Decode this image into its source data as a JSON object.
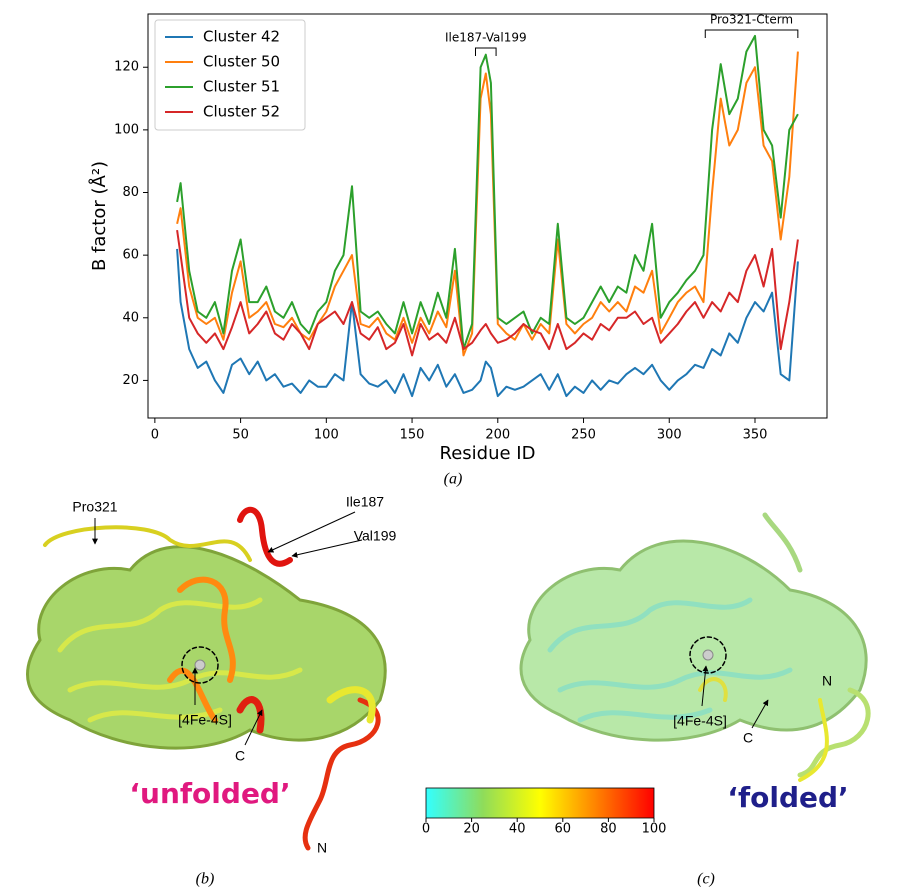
{
  "chart_data": {
    "type": "line",
    "xlabel": "Residue ID",
    "ylabel": "B factor (Å²)",
    "annotations": [
      {
        "text": "Ile187-Val199",
        "x": [
          187,
          199
        ]
      },
      {
        "text": "Pro321-Cterm",
        "x": [
          321,
          375
        ]
      }
    ],
    "x": [
      13,
      15,
      20,
      25,
      30,
      35,
      40,
      45,
      50,
      55,
      60,
      65,
      70,
      75,
      80,
      85,
      90,
      95,
      100,
      105,
      110,
      115,
      120,
      125,
      130,
      135,
      140,
      145,
      150,
      155,
      160,
      165,
      170,
      175,
      180,
      185,
      190,
      193,
      196,
      200,
      205,
      210,
      215,
      220,
      225,
      230,
      235,
      240,
      245,
      250,
      255,
      260,
      265,
      270,
      275,
      280,
      285,
      290,
      295,
      300,
      305,
      310,
      315,
      320,
      325,
      330,
      335,
      340,
      345,
      350,
      355,
      360,
      365,
      370,
      375
    ],
    "series": [
      {
        "name": "Cluster 42",
        "color": "#1f77b4",
        "values": [
          62,
          45,
          30,
          24,
          26,
          20,
          16,
          25,
          27,
          22,
          26,
          20,
          22,
          18,
          19,
          16,
          20,
          18,
          18,
          22,
          20,
          45,
          22,
          19,
          18,
          20,
          16,
          22,
          15,
          24,
          20,
          25,
          18,
          22,
          16,
          17,
          20,
          26,
          24,
          15,
          18,
          17,
          18,
          20,
          22,
          17,
          22,
          15,
          18,
          16,
          20,
          17,
          20,
          19,
          22,
          24,
          22,
          25,
          20,
          17,
          20,
          22,
          25,
          24,
          30,
          28,
          35,
          32,
          40,
          45,
          42,
          48,
          22,
          20,
          58
        ]
      },
      {
        "name": "Cluster 50",
        "color": "#ff7f0e",
        "values": [
          70,
          75,
          50,
          40,
          38,
          40,
          33,
          48,
          58,
          40,
          42,
          45,
          38,
          37,
          40,
          35,
          33,
          38,
          42,
          50,
          55,
          60,
          38,
          37,
          40,
          35,
          33,
          40,
          32,
          40,
          35,
          42,
          37,
          55,
          28,
          35,
          110,
          118,
          105,
          38,
          35,
          33,
          38,
          33,
          38,
          35,
          65,
          38,
          35,
          38,
          40,
          45,
          42,
          45,
          42,
          50,
          48,
          55,
          35,
          40,
          45,
          48,
          50,
          45,
          80,
          110,
          95,
          100,
          115,
          120,
          95,
          90,
          65,
          85,
          125
        ]
      },
      {
        "name": "Cluster 51",
        "color": "#2ca02c",
        "values": [
          77,
          83,
          55,
          42,
          40,
          45,
          35,
          55,
          65,
          45,
          45,
          50,
          42,
          40,
          45,
          38,
          35,
          42,
          45,
          55,
          60,
          82,
          42,
          40,
          42,
          38,
          35,
          45,
          35,
          45,
          38,
          48,
          40,
          62,
          30,
          38,
          120,
          124,
          115,
          40,
          38,
          40,
          42,
          35,
          40,
          38,
          70,
          40,
          38,
          40,
          45,
          50,
          45,
          50,
          48,
          60,
          55,
          70,
          40,
          45,
          48,
          52,
          55,
          60,
          100,
          121,
          105,
          110,
          125,
          130,
          100,
          95,
          72,
          100,
          105
        ]
      },
      {
        "name": "Cluster 52",
        "color": "#d62728",
        "values": [
          68,
          60,
          40,
          35,
          32,
          35,
          30,
          37,
          45,
          35,
          38,
          42,
          35,
          33,
          38,
          35,
          30,
          38,
          40,
          42,
          38,
          45,
          35,
          33,
          37,
          30,
          32,
          38,
          28,
          38,
          33,
          35,
          32,
          40,
          30,
          32,
          36,
          38,
          35,
          32,
          33,
          35,
          38,
          36,
          35,
          30,
          38,
          30,
          32,
          35,
          33,
          38,
          36,
          40,
          40,
          42,
          38,
          40,
          32,
          35,
          38,
          42,
          45,
          40,
          45,
          42,
          48,
          45,
          55,
          60,
          50,
          62,
          30,
          45,
          65
        ]
      }
    ],
    "xlim": [
      -4,
      392
    ],
    "xticks": [
      0,
      50,
      100,
      150,
      200,
      250,
      300,
      350
    ],
    "ylim": [
      8,
      137
    ],
    "yticks": [
      20,
      40,
      60,
      80,
      100,
      120
    ],
    "legend": "upper left",
    "grid": false
  },
  "figure": {
    "panel_a": "(a)",
    "panel_b": {
      "label": "(b)",
      "state": "‘unfolded’",
      "annotations": [
        "Pro321",
        "Ile187",
        "Val199",
        "[4Fe-4S]",
        "C",
        "N"
      ]
    },
    "panel_c": {
      "label": "(c)",
      "state": "‘folded’",
      "annotations": [
        "[4Fe-4S]",
        "C",
        "N"
      ]
    },
    "colorbar": {
      "range": [
        0,
        100
      ],
      "ticks": [
        0,
        20,
        40,
        60,
        80,
        100
      ],
      "colors": [
        "#33ffff",
        "#8fdc5a",
        "#ffff00",
        "#ff8000",
        "#ff0000"
      ]
    }
  }
}
